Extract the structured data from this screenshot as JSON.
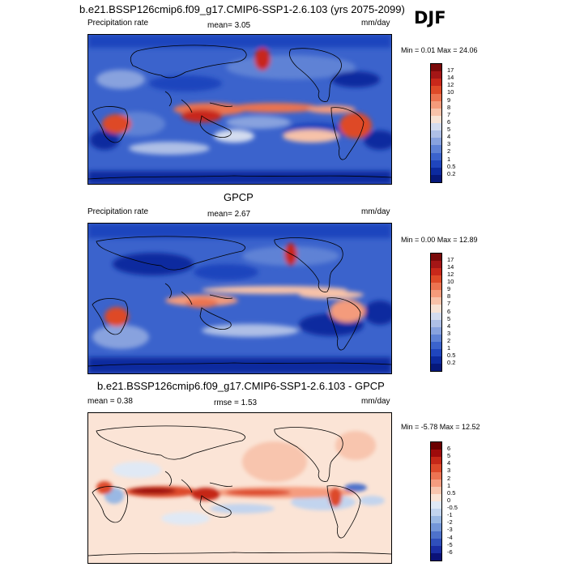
{
  "season": "DJF",
  "panels": [
    {
      "id": "model",
      "title": "b.e21.BSSP126cmip6.f09_g17.CMIP6-SSP1-2.6.103 (yrs 2075-2099)",
      "left_label": "Precipitation rate",
      "center_label": "mean=  3.05",
      "right_label": "mm/day",
      "minmax": "Min =   0.01 Max =  24.06",
      "colorbar": {
        "labels": [
          "17",
          "14",
          "12",
          "10",
          "9",
          "8",
          "7",
          "6",
          "5",
          "4",
          "3",
          "2",
          "1",
          "0.5",
          "0.2"
        ],
        "colors": [
          "#7a0a0a",
          "#a41616",
          "#c8281a",
          "#de4a28",
          "#ec7350",
          "#f49b7b",
          "#f7c2a9",
          "#f7e3d5",
          "#d3dcef",
          "#aebfe6",
          "#88a2de",
          "#5f82d5",
          "#3b63cc",
          "#1f45bd",
          "#0c2a9f",
          "#06187a"
        ]
      }
    },
    {
      "id": "obs",
      "title": "GPCP",
      "left_label": "Precipitation rate",
      "center_label": "mean=  2.67",
      "right_label": "mm/day",
      "minmax": "Min =   0.00 Max =  12.89",
      "colorbar": {
        "labels": [
          "17",
          "14",
          "12",
          "10",
          "9",
          "8",
          "7",
          "6",
          "5",
          "4",
          "3",
          "2",
          "1",
          "0.5",
          "0.2"
        ],
        "colors": [
          "#7a0a0a",
          "#a41616",
          "#c8281a",
          "#de4a28",
          "#ec7350",
          "#f49b7b",
          "#f7c2a9",
          "#f7e3d5",
          "#d3dcef",
          "#aebfe6",
          "#88a2de",
          "#5f82d5",
          "#3b63cc",
          "#1f45bd",
          "#0c2a9f",
          "#06187a"
        ]
      }
    },
    {
      "id": "diff",
      "title": "b.e21.BSSP126cmip6.f09_g17.CMIP6-SSP1-2.6.103 - GPCP",
      "left_label": "mean =  0.38",
      "center_label": "rmse =  1.53",
      "right_label": "mm/day",
      "minmax": "Min =  -5.78 Max =  12.52",
      "colorbar": {
        "labels": [
          "6",
          "5",
          "4",
          "3",
          "2",
          "1",
          "0.5",
          "0",
          "-0.5",
          "-1",
          "-2",
          "-3",
          "-4",
          "-5",
          "-6"
        ],
        "colors": [
          "#6a0000",
          "#9e0b0b",
          "#c52818",
          "#dd4a2b",
          "#ec7453",
          "#f59c7f",
          "#f8c5ae",
          "#fbe4d6",
          "#e0e9f5",
          "#c2d4ee",
          "#9ab8e3",
          "#7396d8",
          "#4e72cb",
          "#2f4fbb",
          "#1a2ea4",
          "#0b1278"
        ]
      }
    }
  ]
}
